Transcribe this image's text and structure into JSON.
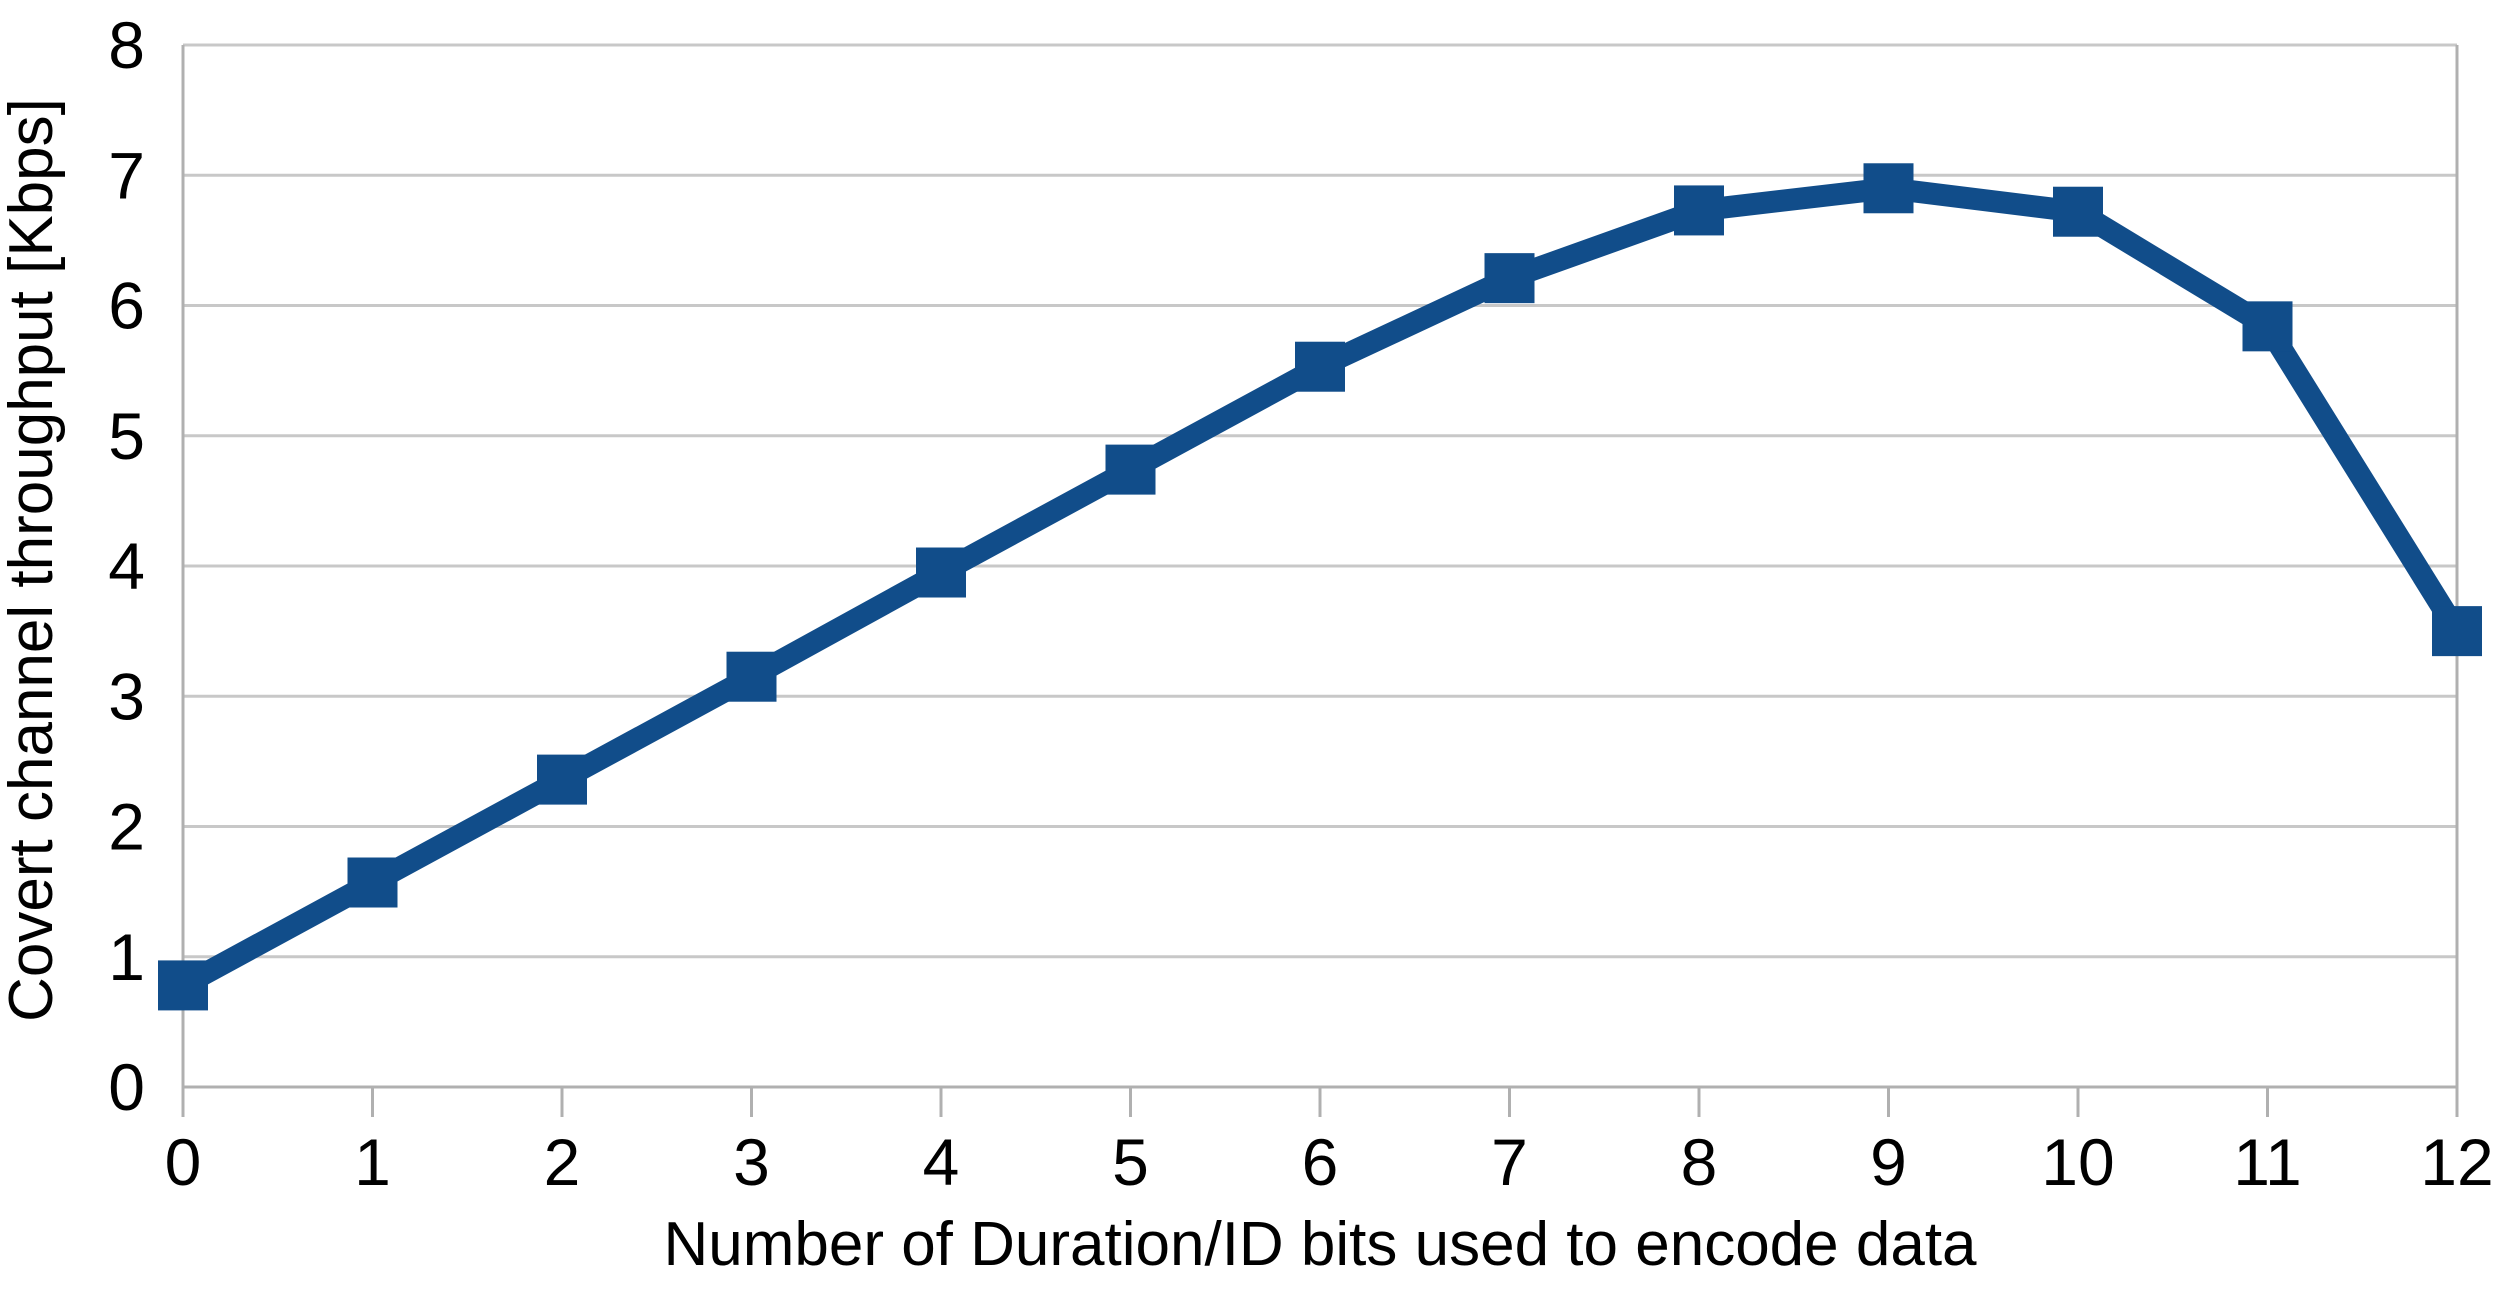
{
  "chart_data": {
    "type": "line",
    "title": "",
    "xlabel": "Number of Duration/ID bits used to encode data",
    "ylabel": "Covert channel throughput [Kbps]",
    "x": [
      0,
      1,
      2,
      3,
      4,
      5,
      6,
      7,
      8,
      9,
      10,
      11,
      12
    ],
    "series": [
      {
        "name": "Covert channel throughput",
        "values": [
          0.78,
          1.57,
          2.36,
          3.15,
          3.95,
          4.74,
          5.53,
          6.21,
          6.73,
          6.9,
          6.72,
          5.84,
          3.5
        ]
      }
    ],
    "xlim": [
      0,
      12
    ],
    "ylim": [
      0,
      8
    ],
    "x_ticks": [
      0,
      1,
      2,
      3,
      4,
      5,
      6,
      7,
      8,
      9,
      10,
      11,
      12
    ],
    "y_ticks": [
      0,
      1,
      2,
      3,
      4,
      5,
      6,
      7,
      8
    ],
    "grid": true,
    "legend": false,
    "marker": "square",
    "colors": {
      "line": "#114d8a",
      "grid": "#c8c8c8",
      "axis": "#b0b0b0",
      "text": "#000000",
      "background": "#ffffff"
    }
  }
}
